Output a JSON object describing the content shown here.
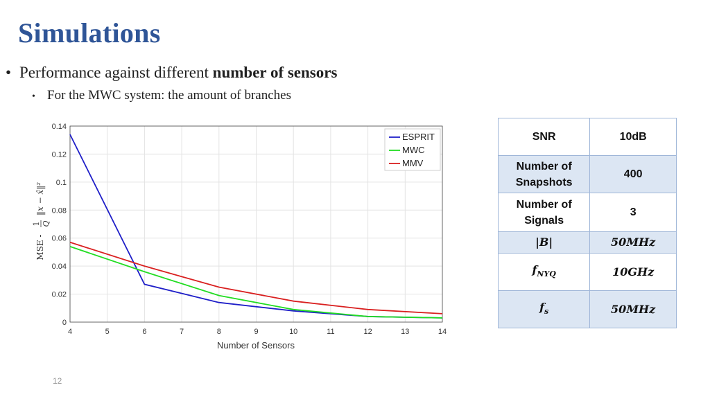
{
  "slide": {
    "title": "Simulations",
    "bullet1_prefix": "Performance against different ",
    "bullet1_bold": "number of sensors",
    "bullet2": "For the MWC system: the amount of branches",
    "page_number": "12"
  },
  "table": {
    "rows": [
      {
        "label": "SNR",
        "value": "10dB"
      },
      {
        "label": "Number of Snapshots",
        "value": "400"
      },
      {
        "label": "Number of Signals",
        "value": "3"
      },
      {
        "label": "|B|",
        "value": "50MHz"
      },
      {
        "label": "f_NYQ",
        "value": "10GHz"
      },
      {
        "label": "f_s",
        "value": "50MHz"
      }
    ]
  },
  "chart_data": {
    "type": "line",
    "xlabel": "Number of Sensors",
    "ylabel": "MSE - (1/Q) ||x − x̂||²",
    "x": [
      4,
      6,
      8,
      10,
      12,
      14
    ],
    "xticks": [
      "4",
      "5",
      "6",
      "7",
      "8",
      "9",
      "10",
      "11",
      "12",
      "13",
      "14"
    ],
    "yticks": [
      "0",
      "0.02",
      "0.04",
      "0.06",
      "0.08",
      "0.1",
      "0.12",
      "0.14"
    ],
    "xlim": [
      4,
      14
    ],
    "ylim": [
      0,
      0.14
    ],
    "grid": true,
    "legend_position": "top-right",
    "series": [
      {
        "name": "ESPRIT",
        "color": "#1f1fc8",
        "values": [
          0.134,
          0.027,
          0.014,
          0.008,
          0.004,
          0.003
        ]
      },
      {
        "name": "MWC",
        "color": "#22dd22",
        "values": [
          0.054,
          0.036,
          0.019,
          0.009,
          0.004,
          0.003
        ]
      },
      {
        "name": "MMV",
        "color": "#d92020",
        "values": [
          0.057,
          0.04,
          0.025,
          0.015,
          0.009,
          0.006
        ]
      }
    ]
  }
}
